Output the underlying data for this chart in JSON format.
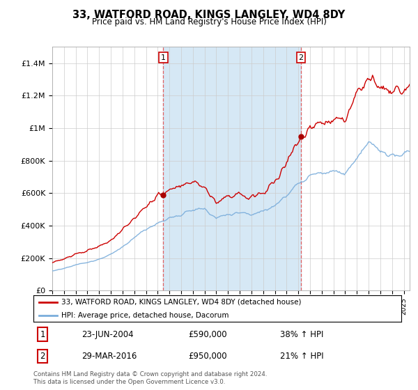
{
  "title": "33, WATFORD ROAD, KINGS LANGLEY, WD4 8DY",
  "subtitle": "Price paid vs. HM Land Registry's House Price Index (HPI)",
  "legend_line1": "33, WATFORD ROAD, KINGS LANGLEY, WD4 8DY (detached house)",
  "legend_line2": "HPI: Average price, detached house, Dacorum",
  "sale1_date": "23-JUN-2004",
  "sale1_price": "£590,000",
  "sale1_hpi": "38% ↑ HPI",
  "sale1_year": 2004.48,
  "sale1_value": 590000,
  "sale2_date": "29-MAR-2016",
  "sale2_price": "£950,000",
  "sale2_hpi": "21% ↑ HPI",
  "sale2_year": 2016.23,
  "sale2_value": 950000,
  "ylim_max": 1500000,
  "xlim_start": 1995.0,
  "xlim_end": 2025.5,
  "red_color": "#cc0000",
  "blue_color": "#7aaddb",
  "shade_color": "#d6e8f5",
  "vline_color": "#e06060",
  "dot_color": "#aa0000",
  "background_color": "#ffffff",
  "grid_color": "#cccccc",
  "footer_text": "Contains HM Land Registry data © Crown copyright and database right 2024.\nThis data is licensed under the Open Government Licence v3.0."
}
